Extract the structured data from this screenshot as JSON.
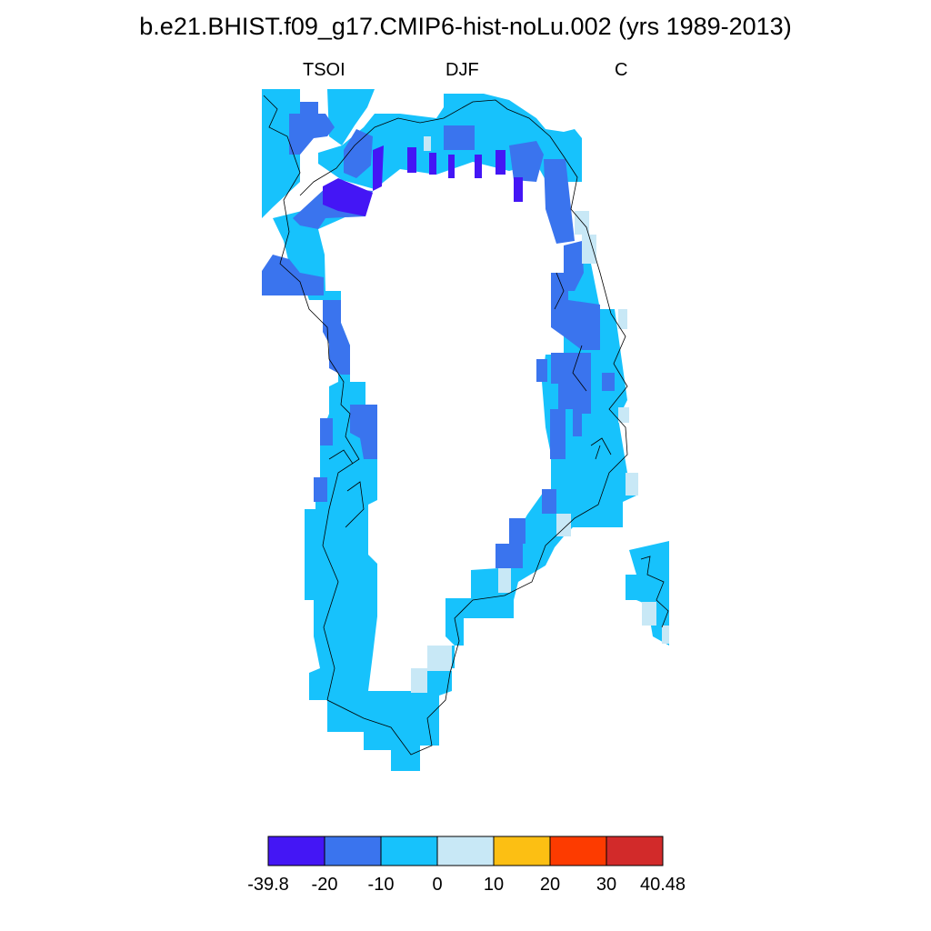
{
  "title": "b.e21.BHIST.f09_g17.CMIP6-hist-noLu.002 (yrs 1989-2013)",
  "subtitle_left": "TSOI",
  "subtitle_center": "DJF",
  "subtitle_right": "C",
  "colorbar": {
    "bins": [
      {
        "color": "#4416f5"
      },
      {
        "color": "#3a74ee"
      },
      {
        "color": "#17c2fc"
      },
      {
        "color": "#c8e8f6"
      },
      {
        "color": "#fcbf13"
      },
      {
        "color": "#fd3b00"
      },
      {
        "color": "#d22a2a"
      }
    ],
    "labels": [
      "-39.8",
      "-20",
      "-10",
      "0",
      "10",
      "20",
      "30",
      "40.48"
    ]
  },
  "colors": {
    "very_cold": "#4416f5",
    "cold": "#3a74ee",
    "cool": "#17c2fc",
    "near_zero": "#c8e8f6"
  }
}
